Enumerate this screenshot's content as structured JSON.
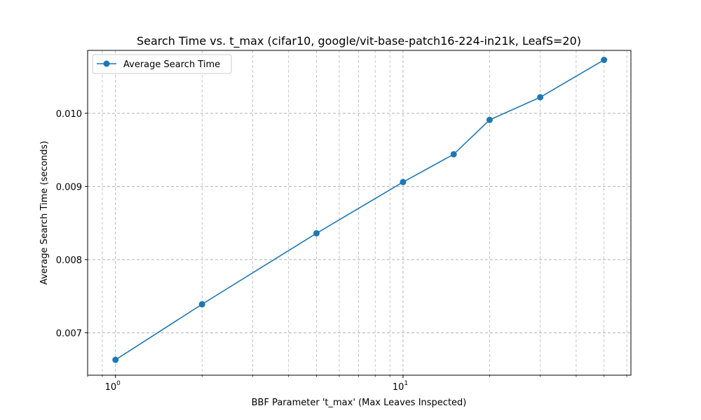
{
  "chart_data": {
    "type": "line",
    "title": "Search Time vs. t_max (cifar10, google/vit-base-patch16-224-in21k, LeafS=20)",
    "xlabel": "BBF Parameter 't_max' (Max Leaves Inspected)",
    "ylabel": "Average Search Time (seconds)",
    "xscale": "log",
    "xlim": [
      0.8,
      62
    ],
    "ylim": [
      0.00642,
      0.01086
    ],
    "x_major_ticks": [
      1,
      10
    ],
    "x_major_tick_labels": [
      "10",
      "10"
    ],
    "x_major_tick_exponents": [
      "0",
      "1"
    ],
    "y_ticks": [
      0.007,
      0.008,
      0.009,
      0.01
    ],
    "y_tick_labels": [
      "0.007",
      "0.008",
      "0.009",
      "0.010"
    ],
    "grid": true,
    "legend_position": "top-left",
    "color": "#1f77b4",
    "series": [
      {
        "name": "Average Search Time",
        "x": [
          1,
          2,
          5,
          10,
          15,
          20,
          30,
          50
        ],
        "y": [
          0.00663,
          0.00739,
          0.00836,
          0.00906,
          0.00944,
          0.00991,
          0.01022,
          0.01073
        ]
      }
    ]
  }
}
